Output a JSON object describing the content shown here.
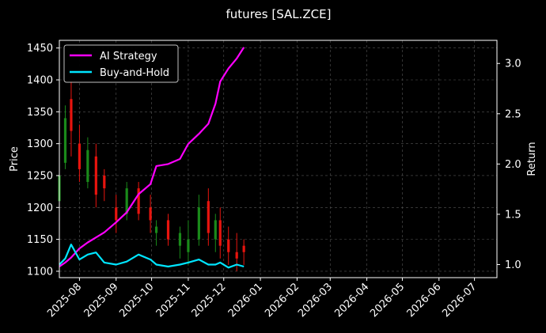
{
  "chart_data": {
    "type": "line",
    "title": "futures [SAL.ZCE]",
    "xlabel": "",
    "ylabel": "Price",
    "y2label": "Return",
    "x_ticks": [
      "2025-08",
      "2025-09",
      "2025-10",
      "2025-11",
      "2025-12",
      "2026-01",
      "2026-02",
      "2026-03",
      "2026-04",
      "2026-05",
      "2026-06",
      "2026-07"
    ],
    "xlim": [
      "2025-07-15",
      "2026-07-20"
    ],
    "ylim": [
      1090,
      1462
    ],
    "y_ticks": [
      1100,
      1150,
      1200,
      1250,
      1300,
      1350,
      1400,
      1450
    ],
    "y2lim": [
      0.87,
      3.23
    ],
    "y2_ticks": [
      "1.0",
      "1.5",
      "2.0",
      "2.5",
      "3.0"
    ],
    "grid": true,
    "legend_position": "top-left",
    "colors": {
      "background": "#000000",
      "ai_strategy": "#ff00ff",
      "buy_and_hold": "#00e5ff",
      "candle_up": "#1a8a1a",
      "candle_down": "#e8140e",
      "grid": "#555555"
    },
    "series": [
      {
        "name": "AI Strategy",
        "axis": "right",
        "x": [
          "2025-07-15",
          "2025-07-20",
          "2025-07-25",
          "2025-08-01",
          "2025-08-08",
          "2025-08-15",
          "2025-08-22",
          "2025-09-01",
          "2025-09-10",
          "2025-09-20",
          "2025-09-30",
          "2025-10-05",
          "2025-10-15",
          "2025-10-25",
          "2025-11-01",
          "2025-11-10",
          "2025-11-18",
          "2025-11-24",
          "2025-11-28",
          "2025-12-05",
          "2025-12-12",
          "2025-12-18"
        ],
        "values": [
          0.98,
          1.02,
          1.07,
          1.16,
          1.22,
          1.27,
          1.32,
          1.42,
          1.52,
          1.7,
          1.8,
          1.98,
          2.0,
          2.05,
          2.2,
          2.3,
          2.4,
          2.6,
          2.82,
          2.95,
          3.05,
          3.16
        ]
      },
      {
        "name": "Buy-and-Hold",
        "axis": "right",
        "x": [
          "2025-07-15",
          "2025-07-20",
          "2025-07-25",
          "2025-08-01",
          "2025-08-08",
          "2025-08-15",
          "2025-08-22",
          "2025-09-01",
          "2025-09-10",
          "2025-09-20",
          "2025-09-30",
          "2025-10-05",
          "2025-10-15",
          "2025-10-25",
          "2025-11-01",
          "2025-11-10",
          "2025-11-18",
          "2025-11-24",
          "2025-11-28",
          "2025-12-05",
          "2025-12-12",
          "2025-12-18"
        ],
        "values": [
          1.0,
          1.06,
          1.2,
          1.05,
          1.1,
          1.12,
          1.02,
          1.0,
          1.03,
          1.1,
          1.05,
          1.0,
          0.98,
          1.0,
          1.02,
          1.05,
          1.0,
          1.0,
          1.02,
          0.97,
          1.0,
          0.98
        ]
      }
    ],
    "candles": {
      "axis": "left",
      "x": [
        "2025-07-15",
        "2025-07-20",
        "2025-07-25",
        "2025-08-01",
        "2025-08-08",
        "2025-08-15",
        "2025-08-22",
        "2025-09-01",
        "2025-09-10",
        "2025-09-20",
        "2025-09-30",
        "2025-10-05",
        "2025-10-15",
        "2025-10-25",
        "2025-11-01",
        "2025-11-10",
        "2025-11-18",
        "2025-11-24",
        "2025-11-28",
        "2025-12-05",
        "2025-12-12",
        "2025-12-18"
      ],
      "open": [
        1210,
        1270,
        1370,
        1300,
        1240,
        1280,
        1250,
        1200,
        1190,
        1230,
        1200,
        1160,
        1180,
        1140,
        1130,
        1150,
        1210,
        1150,
        1180,
        1150,
        1130,
        1140
      ],
      "close": [
        1250,
        1340,
        1320,
        1260,
        1290,
        1220,
        1230,
        1180,
        1230,
        1190,
        1180,
        1170,
        1150,
        1160,
        1150,
        1200,
        1160,
        1180,
        1140,
        1130,
        1120,
        1130
      ],
      "low": [
        1200,
        1260,
        1280,
        1240,
        1230,
        1200,
        1210,
        1160,
        1180,
        1180,
        1160,
        1140,
        1140,
        1120,
        1110,
        1140,
        1140,
        1130,
        1120,
        1110,
        1100,
        1110
      ],
      "high": [
        1260,
        1360,
        1400,
        1330,
        1310,
        1300,
        1260,
        1220,
        1240,
        1240,
        1220,
        1180,
        1190,
        1170,
        1180,
        1220,
        1230,
        1190,
        1200,
        1170,
        1160,
        1150
      ]
    }
  }
}
